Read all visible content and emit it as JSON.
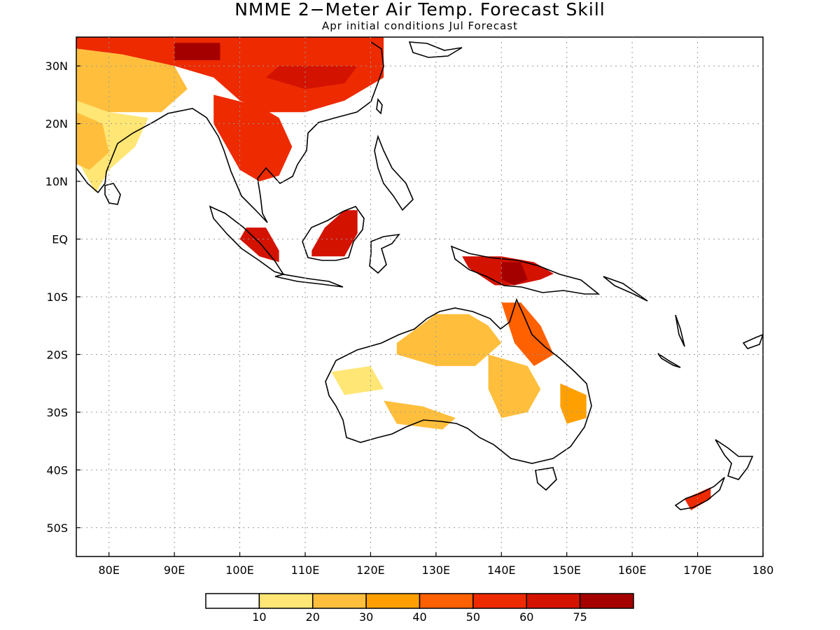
{
  "title": "NMME 2−Meter Air Temp. Forecast Skill",
  "subtitle": "Apr initial conditions  Jul Forecast",
  "map": {
    "lon_range": [
      75,
      180
    ],
    "lat_range": [
      -55,
      35
    ],
    "lon_ticks": [
      {
        "value": 80,
        "label": "80E"
      },
      {
        "value": 90,
        "label": "90E"
      },
      {
        "value": 100,
        "label": "100E"
      },
      {
        "value": 110,
        "label": "110E"
      },
      {
        "value": 120,
        "label": "120E"
      },
      {
        "value": 130,
        "label": "130E"
      },
      {
        "value": 140,
        "label": "140E"
      },
      {
        "value": 150,
        "label": "150E"
      },
      {
        "value": 160,
        "label": "160E"
      },
      {
        "value": 170,
        "label": "170E"
      },
      {
        "value": 180,
        "label": "180"
      }
    ],
    "lat_ticks": [
      {
        "value": 30,
        "label": "30N"
      },
      {
        "value": 20,
        "label": "20N"
      },
      {
        "value": 10,
        "label": "10N"
      },
      {
        "value": 0,
        "label": "EQ"
      },
      {
        "value": -10,
        "label": "10S"
      },
      {
        "value": -20,
        "label": "20S"
      },
      {
        "value": -30,
        "label": "30S"
      },
      {
        "value": -40,
        "label": "40S"
      },
      {
        "value": -50,
        "label": "50S"
      }
    ],
    "grid": true
  },
  "colorbar": {
    "colors": [
      "#ffffff",
      "#ffe675",
      "#ffbf3c",
      "#ffa000",
      "#ff6000",
      "#ee2a00",
      "#d41200",
      "#a50000"
    ],
    "labels": [
      "10",
      "20",
      "30",
      "40",
      "50",
      "60",
      "75"
    ]
  },
  "skill_regions": [
    {
      "name": "tibet-china",
      "level": 5,
      "points": [
        [
          75,
          35
        ],
        [
          122,
          35
        ],
        [
          122,
          28
        ],
        [
          116,
          24
        ],
        [
          110,
          22
        ],
        [
          104,
          22
        ],
        [
          100,
          24
        ],
        [
          96,
          28
        ],
        [
          90,
          30
        ],
        [
          82,
          32
        ],
        [
          75,
          33
        ]
      ]
    },
    {
      "name": "north-india",
      "level": 2,
      "points": [
        [
          75,
          33
        ],
        [
          82,
          32
        ],
        [
          90,
          30
        ],
        [
          92,
          26
        ],
        [
          88,
          22
        ],
        [
          84,
          22
        ],
        [
          78,
          22
        ],
        [
          75,
          24
        ]
      ]
    },
    {
      "name": "west-india",
      "level": 1,
      "points": [
        [
          75,
          24
        ],
        [
          80,
          22
        ],
        [
          86,
          21
        ],
        [
          84,
          16
        ],
        [
          80,
          12
        ],
        [
          78,
          8
        ],
        [
          75,
          14
        ]
      ]
    },
    {
      "name": "sw-india",
      "level": 2,
      "points": [
        [
          75,
          22
        ],
        [
          79,
          20
        ],
        [
          80,
          15
        ],
        [
          77,
          12
        ],
        [
          75,
          13
        ]
      ]
    },
    {
      "name": "indochina",
      "level": 5,
      "points": [
        [
          96,
          25
        ],
        [
          103,
          23
        ],
        [
          106,
          21
        ],
        [
          108,
          16
        ],
        [
          106,
          11
        ],
        [
          103,
          10
        ],
        [
          100,
          12
        ],
        [
          98,
          16
        ],
        [
          96,
          20
        ]
      ]
    },
    {
      "name": "himalaya-core",
      "level": 7,
      "points": [
        [
          90,
          34
        ],
        [
          97,
          34
        ],
        [
          97,
          31
        ],
        [
          90,
          31
        ]
      ]
    },
    {
      "name": "china-south-core",
      "level": 6,
      "points": [
        [
          104,
          28
        ],
        [
          110,
          26
        ],
        [
          116,
          27
        ],
        [
          118,
          30
        ],
        [
          112,
          30
        ],
        [
          106,
          30
        ]
      ]
    },
    {
      "name": "sumatra",
      "level": 6,
      "points": [
        [
          101,
          2
        ],
        [
          104,
          2
        ],
        [
          106,
          -2
        ],
        [
          106,
          -4
        ],
        [
          103,
          -3
        ],
        [
          100,
          0
        ]
      ]
    },
    {
      "name": "borneo",
      "level": 6,
      "points": [
        [
          111,
          -2
        ],
        [
          113,
          2
        ],
        [
          116,
          5
        ],
        [
          118,
          5
        ],
        [
          118,
          1
        ],
        [
          116,
          -3
        ],
        [
          111,
          -3
        ]
      ]
    },
    {
      "name": "new-guinea",
      "level": 6,
      "points": [
        [
          134,
          -3
        ],
        [
          140,
          -3
        ],
        [
          145,
          -4
        ],
        [
          148,
          -6
        ],
        [
          146,
          -7
        ],
        [
          142,
          -8
        ],
        [
          139,
          -8
        ],
        [
          135,
          -5
        ]
      ]
    },
    {
      "name": "new-guinea-core",
      "level": 7,
      "points": [
        [
          140,
          -4
        ],
        [
          143,
          -4
        ],
        [
          144,
          -7
        ],
        [
          142,
          -8
        ],
        [
          140,
          -7
        ]
      ]
    },
    {
      "name": "australia-north",
      "level": 2,
      "points": [
        [
          124,
          -18
        ],
        [
          130,
          -13
        ],
        [
          135,
          -13
        ],
        [
          138,
          -15
        ],
        [
          140,
          -18
        ],
        [
          136,
          -22
        ],
        [
          130,
          -22
        ],
        [
          124,
          -20
        ]
      ]
    },
    {
      "name": "queensland",
      "level": 4,
      "points": [
        [
          140,
          -11
        ],
        [
          143,
          -11
        ],
        [
          146,
          -15
        ],
        [
          148,
          -20
        ],
        [
          145,
          -22
        ],
        [
          142,
          -18
        ]
      ]
    },
    {
      "name": "queensland-inner",
      "level": 2,
      "points": [
        [
          138,
          -20
        ],
        [
          144,
          -22
        ],
        [
          146,
          -26
        ],
        [
          144,
          -30
        ],
        [
          140,
          -31
        ],
        [
          138,
          -26
        ]
      ]
    },
    {
      "name": "australia-east",
      "level": 3,
      "points": [
        [
          149,
          -25
        ],
        [
          153,
          -27
        ],
        [
          153,
          -31
        ],
        [
          150,
          -32
        ],
        [
          149,
          -29
        ]
      ]
    },
    {
      "name": "australia-south",
      "level": 2,
      "points": [
        [
          122,
          -28
        ],
        [
          128,
          -29
        ],
        [
          133,
          -31
        ],
        [
          131,
          -33
        ],
        [
          124,
          -32
        ]
      ]
    },
    {
      "name": "australia-west",
      "level": 1,
      "points": [
        [
          114,
          -23
        ],
        [
          120,
          -22
        ],
        [
          122,
          -26
        ],
        [
          116,
          -27
        ]
      ]
    },
    {
      "name": "new-zealand",
      "level": 5,
      "points": [
        [
          168,
          -45
        ],
        [
          172,
          -43
        ],
        [
          172,
          -45
        ],
        [
          169,
          -47
        ]
      ]
    }
  ]
}
